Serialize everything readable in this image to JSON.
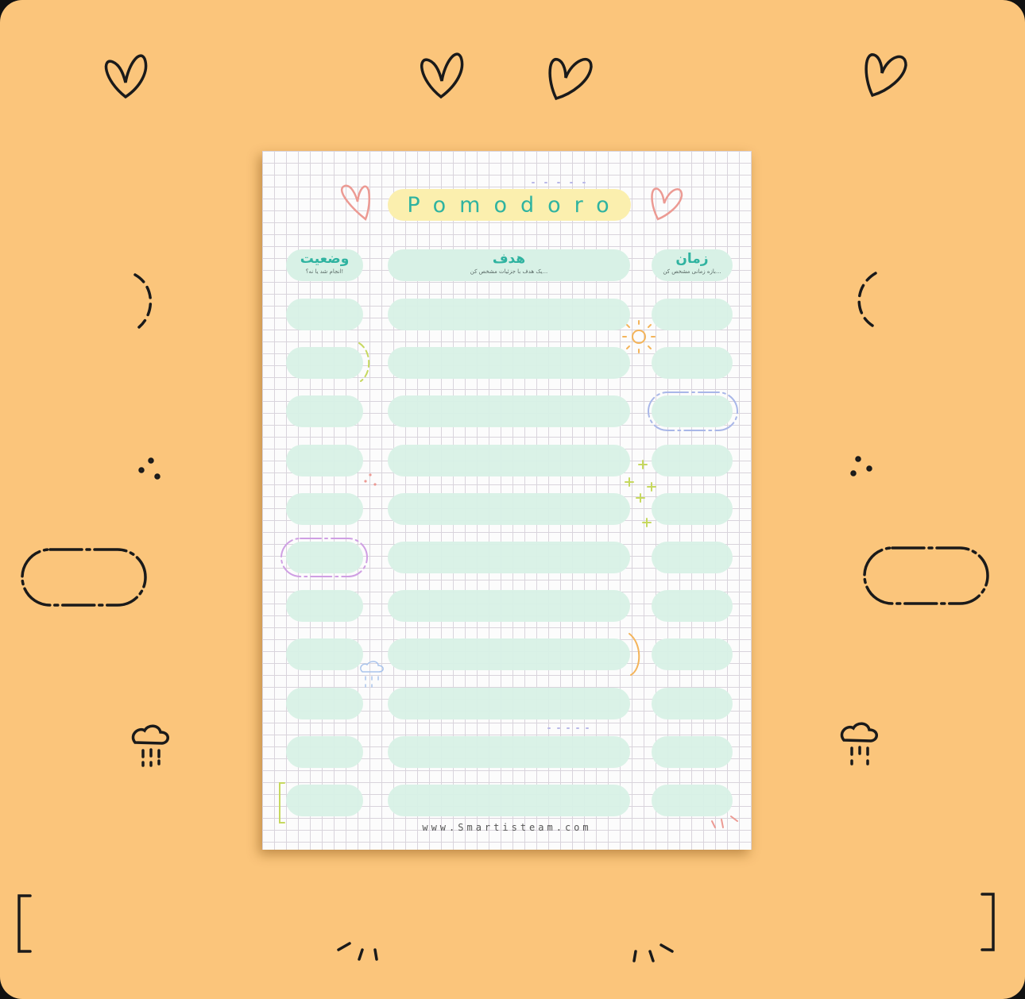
{
  "sheet": {
    "title": "Pomodoro",
    "columns": [
      {
        "title": "وضعیت",
        "subtitle": "انجام شد یا نه؟!"
      },
      {
        "title": "هدف",
        "subtitle": "یک هدف با جزئیات مشخص کن..."
      },
      {
        "title": "زمان",
        "subtitle": "بازه زمانی مشخص کن..."
      }
    ],
    "footer": "www.Smartisteam.com"
  },
  "colors": {
    "background": "#fbc57b",
    "pill": "#d8f1e6",
    "title_pill": "#fbefae",
    "accent_text": "#2fb3a0"
  }
}
